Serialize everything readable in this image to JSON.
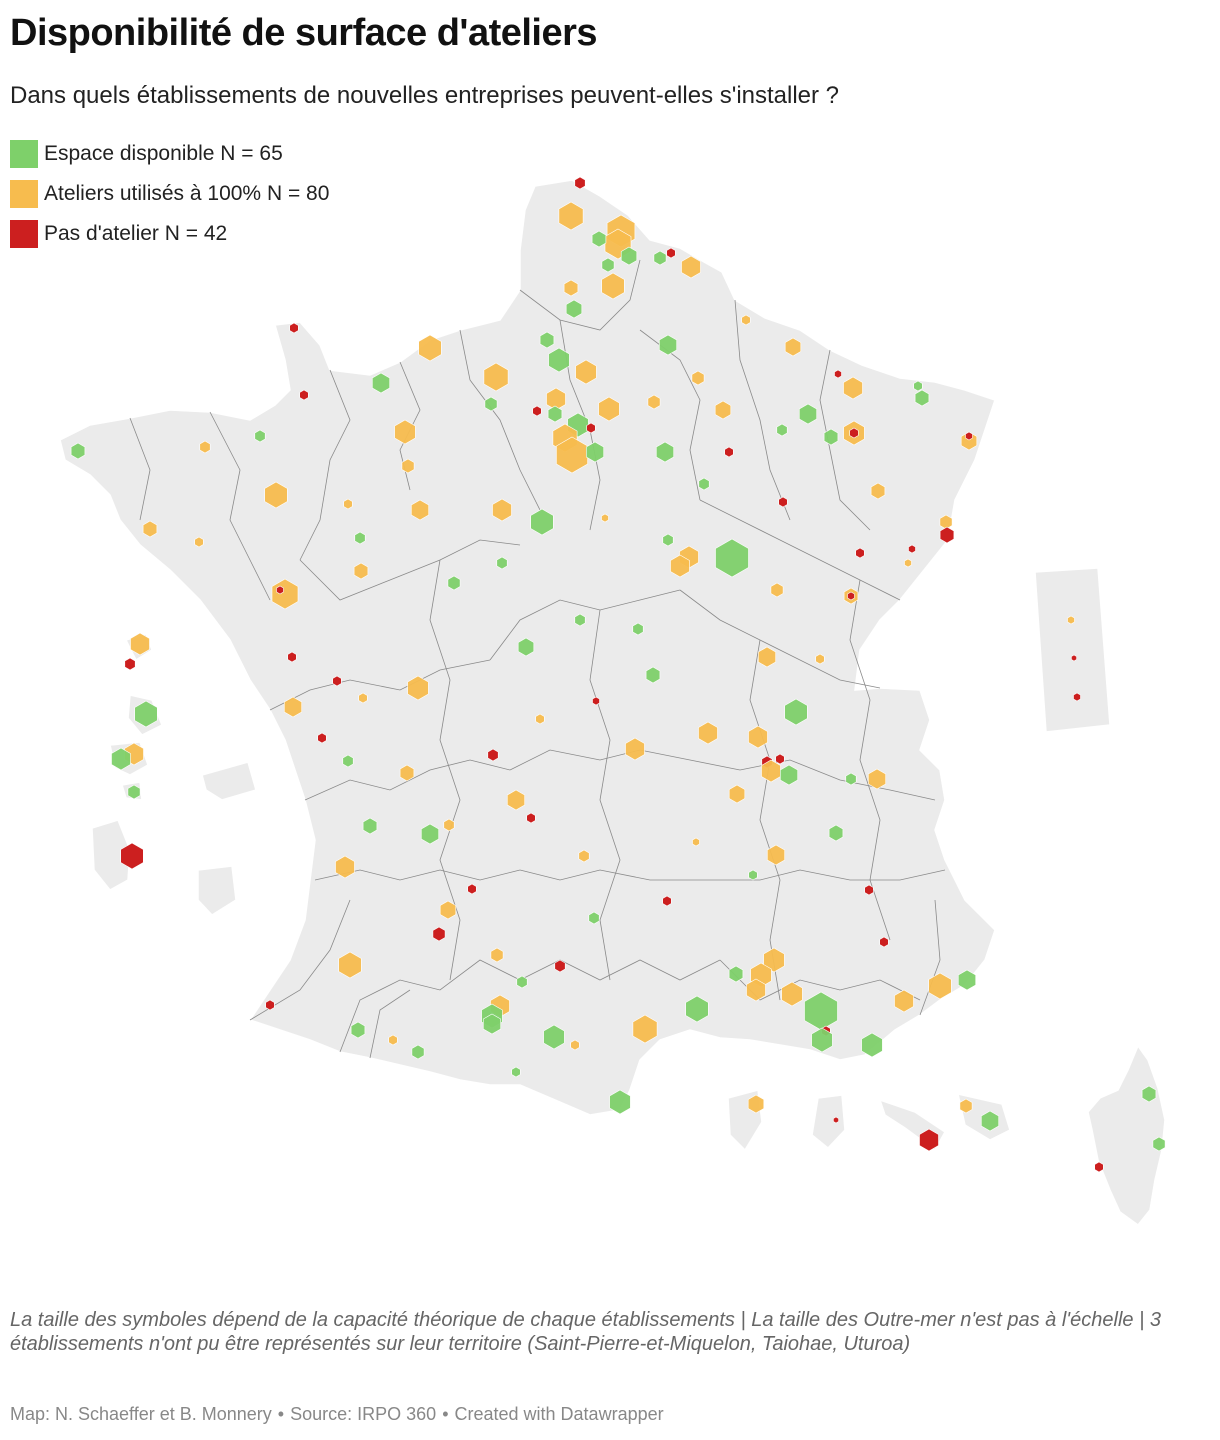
{
  "title": "Disponibilité de surface d'ateliers",
  "subtitle": "Dans quels établissements de nouvelles entreprises peuvent-elles s'installer ?",
  "legend": {
    "items": [
      {
        "label": "Espace disponible N = 65",
        "color": "#7ed06a"
      },
      {
        "label": "Ateliers utilisés à 100% N = 80",
        "color": "#f7bc4e"
      },
      {
        "label": "Pas d'atelier N = 42",
        "color": "#cc1f1f"
      }
    ]
  },
  "colors": {
    "land": "#ebebeb",
    "borders": "#ffffff",
    "internal_borders": "#8a8a8a",
    "available": "#7ed06a",
    "full": "#f7bc4e",
    "none": "#cc1f1f"
  },
  "note": "La taille des symboles dépend de la capacité théorique de chaque établissements | La taille des Outre-mer n'est pas à l'échelle | 3 établissements n'ont pu être représentés sur leur territoire (Saint-Pierre-et-Miquelon, Taiohae, Uturoa)",
  "credits": {
    "map": "Map: N. Schaeffer et B. Monnery",
    "source": "Source: IRPO 360",
    "tool": "Created with Datawrapper",
    "separator": "•"
  }
}
